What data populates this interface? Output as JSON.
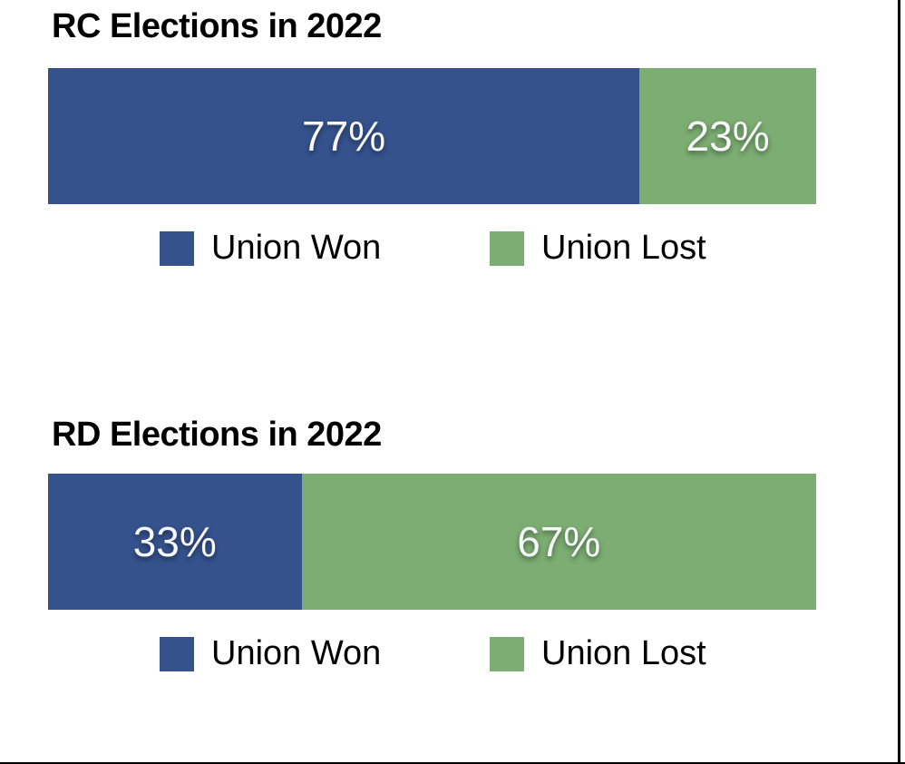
{
  "page": {
    "background": "#ffffff",
    "frame_color": "#000000"
  },
  "colors": {
    "union_won": "#35528D",
    "union_lost": "#7CAD72",
    "percent_label_text": "#F7F8FA",
    "title_text": "#000000",
    "legend_text": "#000000"
  },
  "chart_data": [
    {
      "type": "bar",
      "orientation": "horizontal",
      "stacked": true,
      "title": "RC Elections in 2022",
      "categories": [
        "RC Elections 2022"
      ],
      "xlim": [
        0,
        100
      ],
      "legend_position": "bottom",
      "series": [
        {
          "name": "Union Won",
          "value": 77,
          "label": "77%",
          "color": "#35528D"
        },
        {
          "name": "Union Lost",
          "value": 23,
          "label": "23%",
          "color": "#7CAD72"
        }
      ]
    },
    {
      "type": "bar",
      "orientation": "horizontal",
      "stacked": true,
      "title": "RD Elections in 2022",
      "categories": [
        "RD Elections 2022"
      ],
      "xlim": [
        0,
        100
      ],
      "legend_position": "bottom",
      "series": [
        {
          "name": "Union Won",
          "value": 33,
          "label": "33%",
          "color": "#35528D"
        },
        {
          "name": "Union Lost",
          "value": 67,
          "label": "67%",
          "color": "#7CAD72"
        }
      ]
    }
  ]
}
